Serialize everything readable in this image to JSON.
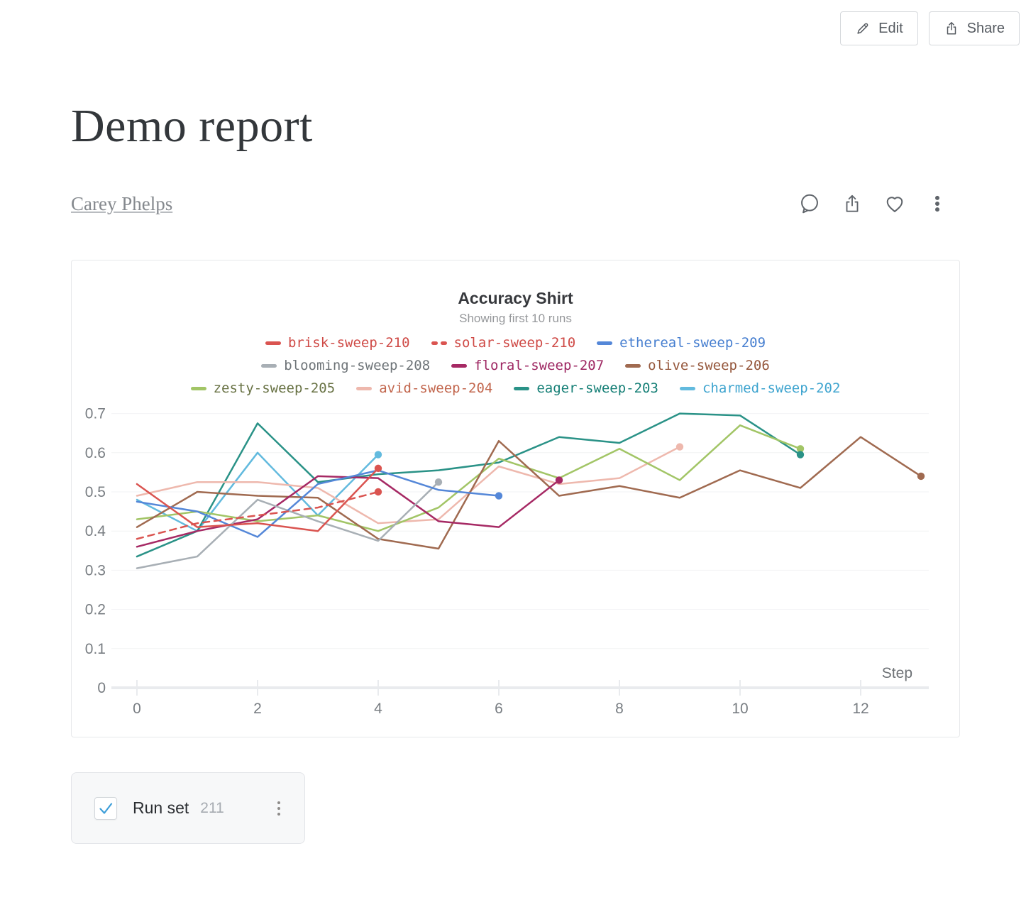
{
  "toolbar": {
    "edit_label": "Edit",
    "share_label": "Share"
  },
  "report": {
    "title": "Demo report",
    "author": "Carey Phelps"
  },
  "runset": {
    "label": "Run set",
    "count": "211",
    "checked": "true"
  },
  "chart_data": {
    "type": "line",
    "title": "Accuracy Shirt",
    "subtitle": "Showing first 10 runs",
    "xlabel": "Step",
    "ylabel": "",
    "xlim": [
      0,
      13
    ],
    "ylim": [
      0,
      0.7
    ],
    "x_ticks": [
      0,
      2,
      4,
      6,
      8,
      10,
      12
    ],
    "y_ticks": [
      "0",
      "0.1",
      "0.2",
      "0.3",
      "0.4",
      "0.5",
      "0.6",
      "0.7"
    ],
    "grid": true,
    "legend_position": "top",
    "legend_rows": [
      [
        0,
        1,
        2
      ],
      [
        3,
        4,
        5
      ],
      [
        6,
        7,
        8,
        9
      ]
    ],
    "x_start": 0,
    "x_step_size": 1,
    "series": [
      {
        "name": "brisk-sweep-210",
        "color": "#da5450",
        "label_color": "#cf4a46",
        "dash": false,
        "end_dot": true,
        "values": [
          0.52,
          0.41,
          0.42,
          0.4,
          0.56
        ]
      },
      {
        "name": "solar-sweep-210",
        "color": "#da5450",
        "label_color": "#cf4a46",
        "dash": true,
        "end_dot": true,
        "values": [
          0.38,
          0.42,
          0.44,
          0.46,
          0.5
        ]
      },
      {
        "name": "ethereal-sweep-209",
        "color": "#5487d8",
        "label_color": "#477fd0",
        "dash": false,
        "end_dot": true,
        "values": [
          0.475,
          0.45,
          0.385,
          0.52,
          0.555,
          0.505,
          0.49
        ]
      },
      {
        "name": "blooming-sweep-208",
        "color": "#a8afb5",
        "label_color": "#6e7478",
        "dash": false,
        "end_dot": true,
        "values": [
          0.305,
          0.335,
          0.48,
          0.425,
          0.375,
          0.525
        ]
      },
      {
        "name": "floral-sweep-207",
        "color": "#a62964",
        "label_color": "#9e2762",
        "dash": false,
        "end_dot": true,
        "values": [
          0.36,
          0.4,
          0.43,
          0.54,
          0.535,
          0.425,
          0.41,
          0.53
        ]
      },
      {
        "name": "olive-sweep-206",
        "color": "#a06a50",
        "label_color": "#95573c",
        "dash": false,
        "end_dot": true,
        "values": [
          0.41,
          0.5,
          0.49,
          0.485,
          0.38,
          0.355,
          0.63,
          0.49,
          0.515,
          0.485,
          0.555,
          0.51,
          0.64,
          0.54
        ]
      },
      {
        "name": "zesty-sweep-205",
        "color": "#a2c566",
        "label_color": "#687244",
        "dash": false,
        "end_dot": true,
        "values": [
          0.43,
          0.45,
          0.425,
          0.44,
          0.4,
          0.46,
          0.585,
          0.535,
          0.61,
          0.53,
          0.67,
          0.61
        ]
      },
      {
        "name": "avid-sweep-204",
        "color": "#eeb8ad",
        "label_color": "#c2664d",
        "dash": false,
        "end_dot": true,
        "values": [
          0.49,
          0.525,
          0.525,
          0.51,
          0.42,
          0.43,
          0.565,
          0.52,
          0.535,
          0.615
        ]
      },
      {
        "name": "eager-sweep-203",
        "color": "#2a9287",
        "label_color": "#157f76",
        "dash": false,
        "end_dot": true,
        "values": [
          0.335,
          0.4,
          0.675,
          0.525,
          0.545,
          0.555,
          0.575,
          0.64,
          0.625,
          0.7,
          0.695,
          0.595
        ]
      },
      {
        "name": "charmed-sweep-202",
        "color": "#62bade",
        "label_color": "#3ea4cf",
        "dash": false,
        "end_dot": true,
        "values": [
          0.48,
          0.4,
          0.6,
          0.44,
          0.595
        ]
      }
    ],
    "axis_color": "#e9ebee",
    "grid_color": "#f2f3f4",
    "tick_label_color": "#787d82"
  }
}
